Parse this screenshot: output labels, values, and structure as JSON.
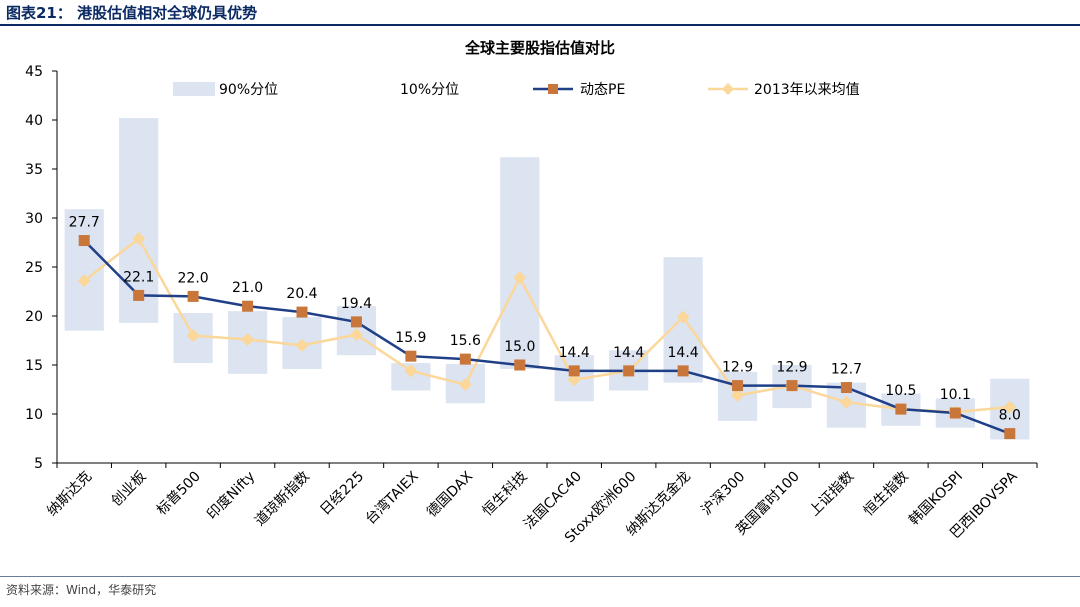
{
  "header": {
    "title": "图表21：  港股估值相对全球仍具优势"
  },
  "footer": {
    "source": "资料来源：Wind，华泰研究"
  },
  "chart_data": {
    "type": "line",
    "title": "全球主要股指估值对比",
    "ylim": [
      5,
      45
    ],
    "yticks": [
      5,
      10,
      15,
      20,
      25,
      30,
      35,
      40,
      45
    ],
    "grid": false,
    "legend_position": "top",
    "categories": [
      "纳斯达克",
      "创业板",
      "标普500",
      "印度Nifty",
      "道琼斯指数",
      "日经225",
      "台湾TAIEX",
      "德国DAX",
      "恒生科技",
      "法国CAC40",
      "Stoxx欧洲600",
      "纳斯达克金龙",
      "沪深300",
      "英国富时100",
      "上证指数",
      "恒生指数",
      "韩国KOSPI",
      "巴西IBOVSPA"
    ],
    "series": [
      {
        "name": "90%分位",
        "kind": "range_top",
        "color": "#dce3f1",
        "values": [
          30.9,
          40.2,
          20.3,
          20.5,
          19.9,
          21.0,
          15.2,
          15.1,
          36.2,
          16.0,
          16.5,
          26.0,
          14.3,
          15.0,
          13.2,
          12.1,
          11.6,
          13.6
        ]
      },
      {
        "name": "10%分位",
        "kind": "range_bottom",
        "color": "#ffffff",
        "values": [
          18.5,
          19.3,
          15.2,
          14.1,
          14.6,
          16.0,
          12.4,
          11.1,
          14.6,
          11.3,
          12.4,
          13.2,
          9.3,
          10.6,
          8.6,
          8.8,
          8.6,
          7.4
        ]
      },
      {
        "name": "动态PE",
        "kind": "line",
        "color": "#1f3f87",
        "marker_color": "#c8763a",
        "values": [
          27.7,
          22.1,
          22.0,
          21.0,
          20.4,
          19.4,
          15.9,
          15.6,
          15.0,
          14.4,
          14.4,
          14.4,
          12.9,
          12.9,
          12.7,
          10.5,
          10.1,
          8.0
        ]
      },
      {
        "name": "2013年以来均值",
        "kind": "line",
        "color": "#fbd79a",
        "marker_color": "#fbd79a",
        "values": [
          23.6,
          27.9,
          18.0,
          17.6,
          17.0,
          18.1,
          14.4,
          13.0,
          23.9,
          13.5,
          14.4,
          19.9,
          11.9,
          12.9,
          11.2,
          10.5,
          10.2,
          10.7
        ]
      }
    ],
    "data_labels": [
      "27.7",
      "22.1",
      "22.0",
      "21.0",
      "20.4",
      "19.4",
      "15.9",
      "15.6",
      "15.0",
      "14.4",
      "14.4",
      "14.4",
      "12.9",
      "12.9",
      "12.7",
      "10.5",
      "10.1",
      "8.0"
    ]
  }
}
